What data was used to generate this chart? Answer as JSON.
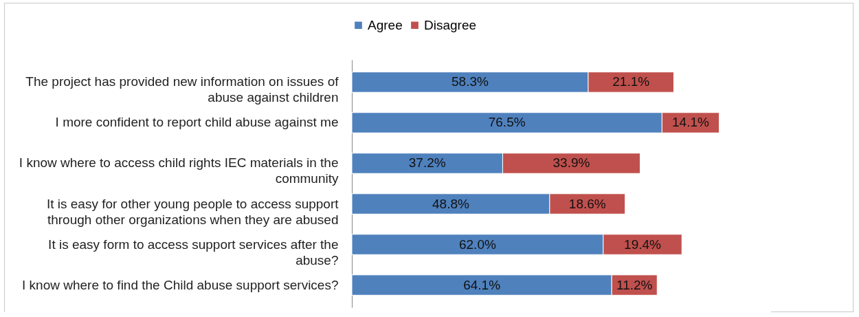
{
  "chart_data": {
    "type": "bar",
    "orientation": "horizontal",
    "stacked": true,
    "legend": "top",
    "categories": [
      "The project has provided new information on issues of abuse against children",
      "I more confident to report child abuse against me",
      "I know where to access child rights IEC materials in the community",
      "It is easy for other young people to access support through other organizations when they are abused",
      "It is easy form to access support services after the abuse?",
      "I know where to find the Child abuse support services?"
    ],
    "series": [
      {
        "name": "Agree",
        "color": "#4f81bd",
        "values": [
          58.3,
          76.5,
          37.2,
          48.8,
          62.0,
          64.1
        ],
        "value_labels": [
          "58.3%",
          "76.5%",
          "37.2%",
          "48.8%",
          "62.0%",
          "64.1%"
        ]
      },
      {
        "name": "Disagree",
        "color": "#c0504d",
        "values": [
          21.1,
          14.1,
          33.9,
          18.6,
          19.4,
          11.2
        ],
        "value_labels": [
          "21.1%",
          "14.1%",
          "33.9%",
          "18.6%",
          "19.4%",
          "11.2%"
        ]
      }
    ]
  }
}
